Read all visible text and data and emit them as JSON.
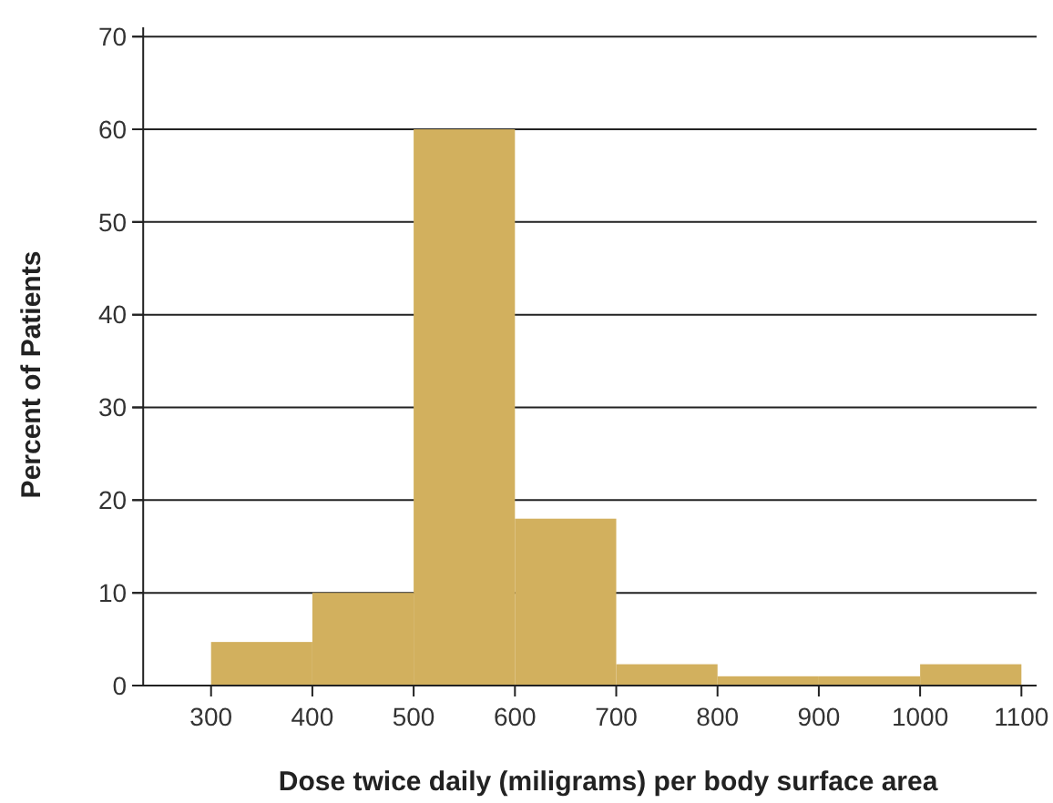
{
  "chart_data": {
    "type": "histogram",
    "xlabel": "Dose twice daily (miligrams) per body surface area",
    "ylabel": "Percent of Patients",
    "bins": [
      300,
      400,
      500,
      600,
      700,
      800,
      900,
      1000,
      1100
    ],
    "values": [
      4.7,
      10,
      60,
      18,
      2.3,
      1,
      1,
      2.3
    ],
    "color": "#d2b05e",
    "xlim": [
      233,
      1115
    ],
    "xticks": [
      300,
      400,
      500,
      600,
      700,
      800,
      900,
      1000,
      1100
    ],
    "ylim": [
      0,
      71
    ],
    "yticks": [
      0,
      10,
      20,
      30,
      40,
      50,
      60,
      70
    ],
    "grid": "y"
  }
}
